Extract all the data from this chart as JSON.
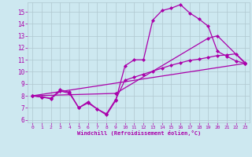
{
  "xlabel": "Windchill (Refroidissement éolien,°C)",
  "bg_color": "#cde8f0",
  "grid_color": "#b0c8d0",
  "line_color": "#aa00aa",
  "marker": "D",
  "markersize": 2.0,
  "linewidth": 0.9,
  "xlim": [
    -0.5,
    23.5
  ],
  "ylim": [
    5.8,
    15.8
  ],
  "xticks": [
    0,
    1,
    2,
    3,
    4,
    5,
    6,
    7,
    8,
    9,
    10,
    11,
    12,
    13,
    14,
    15,
    16,
    17,
    18,
    19,
    20,
    21,
    22,
    23
  ],
  "yticks": [
    6,
    7,
    8,
    9,
    10,
    11,
    12,
    13,
    14,
    15
  ],
  "lines": [
    {
      "x": [
        0,
        1,
        2,
        3,
        4,
        5,
        6,
        7,
        8,
        9,
        10,
        11,
        12,
        13,
        14,
        15,
        16,
        17,
        18,
        19,
        20,
        21,
        22,
        23
      ],
      "y": [
        8.0,
        7.9,
        7.8,
        8.5,
        8.3,
        7.0,
        7.5,
        6.9,
        6.4,
        7.6,
        10.5,
        11.0,
        11.0,
        14.3,
        15.1,
        15.3,
        15.6,
        14.9,
        14.4,
        13.8,
        11.7,
        11.3,
        10.9,
        10.7
      ]
    },
    {
      "x": [
        0,
        1,
        2,
        3,
        4,
        5,
        6,
        7,
        8,
        9,
        10,
        11,
        12,
        13,
        14,
        15,
        16,
        17,
        18,
        19,
        20,
        21,
        22,
        23
      ],
      "y": [
        8.0,
        7.9,
        7.75,
        8.4,
        8.2,
        7.0,
        7.4,
        6.9,
        6.5,
        7.7,
        9.3,
        9.55,
        9.8,
        10.05,
        10.3,
        10.55,
        10.75,
        10.95,
        11.05,
        11.2,
        11.35,
        11.4,
        11.5,
        10.75
      ]
    },
    {
      "x": [
        0,
        23
      ],
      "y": [
        8.0,
        10.7
      ]
    },
    {
      "x": [
        0,
        9,
        19,
        20,
        23
      ],
      "y": [
        8.0,
        8.2,
        12.8,
        13.0,
        10.7
      ]
    }
  ]
}
